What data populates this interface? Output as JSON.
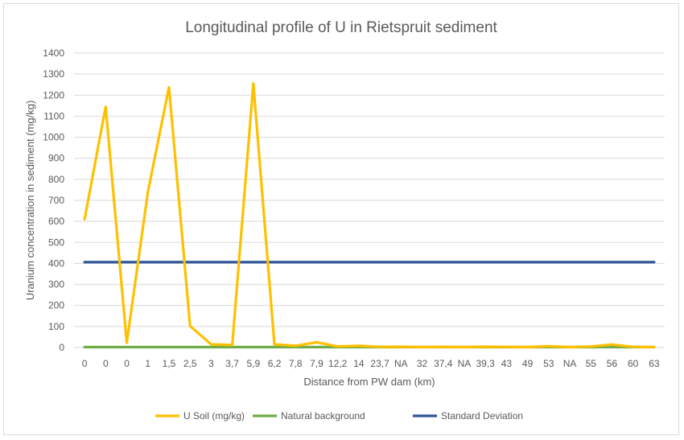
{
  "chart_data": {
    "type": "line",
    "title": "Longitudinal profile of U in Rietspruit sediment",
    "xlabel": "Distance from PW dam (km)",
    "ylabel": "Uranium concentration in sediment (mg/kg)",
    "ylim": [
      0,
      1400
    ],
    "yticks": [
      "0",
      "100",
      "200",
      "300",
      "400",
      "500",
      "600",
      "700",
      "800",
      "900",
      "1000",
      "1100",
      "1200",
      "1300",
      "1400"
    ],
    "categories": [
      "0",
      "0",
      "0",
      "1",
      "1,5",
      "2,5",
      "3",
      "3,7",
      "5,9",
      "6,2",
      "7,8",
      "7,9",
      "12,2",
      "14",
      "23,7",
      "NA",
      "32",
      "37,4",
      "NA",
      "39,3",
      "43",
      "49",
      "53",
      "NA",
      "55",
      "56",
      "60",
      "63"
    ],
    "grid": true,
    "legend_position": "bottom",
    "series": [
      {
        "name": "U Soil (mg/kg)",
        "color": "#FFC000",
        "values": [
          610,
          1145,
          22,
          740,
          1238,
          102,
          15,
          12,
          1255,
          15,
          8,
          25,
          5,
          8,
          3,
          4,
          2,
          3,
          2,
          4,
          3,
          2,
          6,
          2,
          5,
          14,
          3,
          2
        ]
      },
      {
        "name": "Natural background",
        "color": "#70AD47",
        "values": [
          2,
          2,
          2,
          2,
          2,
          2,
          2,
          2,
          2,
          2,
          2,
          2,
          2,
          2,
          2,
          2,
          2,
          2,
          2,
          2,
          2,
          2,
          2,
          2,
          2,
          2,
          2,
          2
        ]
      },
      {
        "name": "Standard Deviation",
        "color": "#2F5597",
        "values": [
          406,
          406,
          406,
          406,
          406,
          406,
          406,
          406,
          406,
          406,
          406,
          406,
          406,
          406,
          406,
          406,
          406,
          406,
          406,
          406,
          406,
          406,
          406,
          406,
          406,
          406,
          406,
          406
        ]
      }
    ]
  }
}
